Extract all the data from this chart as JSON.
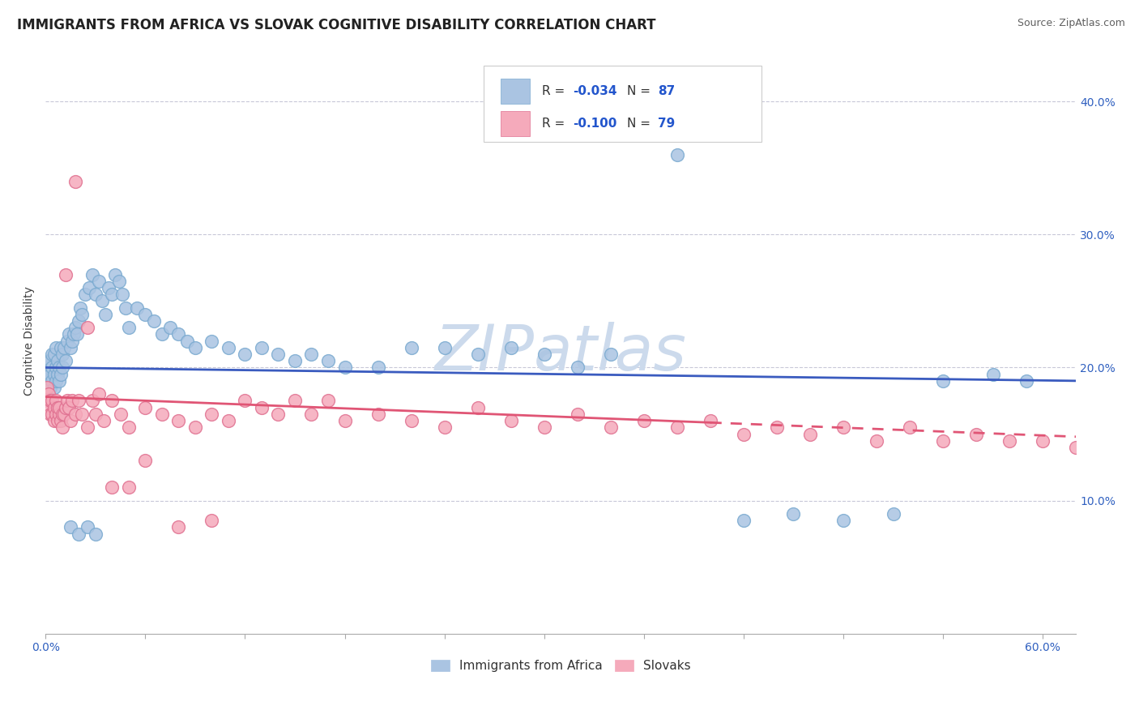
{
  "title": "IMMIGRANTS FROM AFRICA VS SLOVAK COGNITIVE DISABILITY CORRELATION CHART",
  "source": "Source: ZipAtlas.com",
  "ylabel": "Cognitive Disability",
  "xlim": [
    0.0,
    0.62
  ],
  "ylim": [
    0.0,
    0.44
  ],
  "xticks": [
    0.0,
    0.06,
    0.12,
    0.18,
    0.24,
    0.3,
    0.36,
    0.42,
    0.48,
    0.54,
    0.6
  ],
  "yticks_right": [
    0.1,
    0.2,
    0.3,
    0.4
  ],
  "series1_label": "Immigrants from Africa",
  "series1_color": "#aac4e2",
  "series1_edge": "#7aaad0",
  "series1_R": "-0.034",
  "series1_N": "87",
  "series1_line_color": "#3a5bbf",
  "series2_label": "Slovaks",
  "series2_color": "#f5aabb",
  "series2_edge": "#e07090",
  "series2_R": "-0.100",
  "series2_N": "79",
  "series2_line_color": "#e05575",
  "legend_R_color": "#2255cc",
  "legend_N_color": "#2255cc",
  "watermark": "ZIPatlas",
  "watermark_color": "#ccdaec",
  "title_fontsize": 12,
  "axis_label_fontsize": 10,
  "tick_fontsize": 10,
  "series1_x": [
    0.001,
    0.001,
    0.002,
    0.002,
    0.003,
    0.003,
    0.003,
    0.004,
    0.004,
    0.004,
    0.005,
    0.005,
    0.005,
    0.006,
    0.006,
    0.006,
    0.007,
    0.007,
    0.008,
    0.008,
    0.009,
    0.009,
    0.01,
    0.01,
    0.011,
    0.012,
    0.013,
    0.014,
    0.015,
    0.016,
    0.017,
    0.018,
    0.019,
    0.02,
    0.021,
    0.022,
    0.024,
    0.026,
    0.028,
    0.03,
    0.032,
    0.034,
    0.036,
    0.038,
    0.04,
    0.042,
    0.044,
    0.046,
    0.048,
    0.05,
    0.055,
    0.06,
    0.065,
    0.07,
    0.075,
    0.08,
    0.085,
    0.09,
    0.1,
    0.11,
    0.12,
    0.13,
    0.14,
    0.15,
    0.16,
    0.17,
    0.18,
    0.2,
    0.22,
    0.24,
    0.26,
    0.28,
    0.3,
    0.32,
    0.34,
    0.38,
    0.42,
    0.45,
    0.48,
    0.51,
    0.54,
    0.57,
    0.59,
    0.015,
    0.02,
    0.025,
    0.03
  ],
  "series1_y": [
    0.195,
    0.2,
    0.19,
    0.205,
    0.195,
    0.185,
    0.205,
    0.19,
    0.2,
    0.21,
    0.185,
    0.195,
    0.21,
    0.19,
    0.2,
    0.215,
    0.195,
    0.205,
    0.19,
    0.2,
    0.195,
    0.215,
    0.2,
    0.21,
    0.215,
    0.205,
    0.22,
    0.225,
    0.215,
    0.22,
    0.225,
    0.23,
    0.225,
    0.235,
    0.245,
    0.24,
    0.255,
    0.26,
    0.27,
    0.255,
    0.265,
    0.25,
    0.24,
    0.26,
    0.255,
    0.27,
    0.265,
    0.255,
    0.245,
    0.23,
    0.245,
    0.24,
    0.235,
    0.225,
    0.23,
    0.225,
    0.22,
    0.215,
    0.22,
    0.215,
    0.21,
    0.215,
    0.21,
    0.205,
    0.21,
    0.205,
    0.2,
    0.2,
    0.215,
    0.215,
    0.21,
    0.215,
    0.21,
    0.2,
    0.21,
    0.36,
    0.085,
    0.09,
    0.085,
    0.09,
    0.19,
    0.195,
    0.19,
    0.08,
    0.075,
    0.08,
    0.075
  ],
  "series2_x": [
    0.001,
    0.001,
    0.002,
    0.002,
    0.003,
    0.003,
    0.004,
    0.004,
    0.005,
    0.005,
    0.006,
    0.006,
    0.007,
    0.007,
    0.008,
    0.008,
    0.009,
    0.01,
    0.01,
    0.011,
    0.012,
    0.013,
    0.014,
    0.015,
    0.016,
    0.018,
    0.02,
    0.022,
    0.025,
    0.028,
    0.03,
    0.035,
    0.04,
    0.045,
    0.05,
    0.06,
    0.07,
    0.08,
    0.09,
    0.1,
    0.11,
    0.12,
    0.13,
    0.14,
    0.15,
    0.16,
    0.17,
    0.18,
    0.2,
    0.22,
    0.24,
    0.26,
    0.28,
    0.3,
    0.32,
    0.34,
    0.36,
    0.38,
    0.4,
    0.42,
    0.44,
    0.46,
    0.48,
    0.5,
    0.52,
    0.54,
    0.56,
    0.58,
    0.6,
    0.62,
    0.012,
    0.018,
    0.025,
    0.032,
    0.04,
    0.05,
    0.06,
    0.08,
    0.1
  ],
  "series2_y": [
    0.185,
    0.175,
    0.18,
    0.17,
    0.175,
    0.165,
    0.175,
    0.165,
    0.17,
    0.16,
    0.165,
    0.175,
    0.17,
    0.16,
    0.165,
    0.17,
    0.16,
    0.165,
    0.155,
    0.165,
    0.17,
    0.175,
    0.17,
    0.16,
    0.175,
    0.165,
    0.175,
    0.165,
    0.155,
    0.175,
    0.165,
    0.16,
    0.175,
    0.165,
    0.155,
    0.17,
    0.165,
    0.16,
    0.155,
    0.165,
    0.16,
    0.175,
    0.17,
    0.165,
    0.175,
    0.165,
    0.175,
    0.16,
    0.165,
    0.16,
    0.155,
    0.17,
    0.16,
    0.155,
    0.165,
    0.155,
    0.16,
    0.155,
    0.16,
    0.15,
    0.155,
    0.15,
    0.155,
    0.145,
    0.155,
    0.145,
    0.15,
    0.145,
    0.145,
    0.14,
    0.27,
    0.34,
    0.23,
    0.18,
    0.11,
    0.11,
    0.13,
    0.08,
    0.085
  ],
  "trendline1_x0": 0.0,
  "trendline1_y0": 0.2,
  "trendline1_x1": 0.62,
  "trendline1_y1": 0.19,
  "trendline2_x0": 0.0,
  "trendline2_y0": 0.178,
  "trendline2_x1": 0.62,
  "trendline2_y1": 0.148,
  "trendline2_solid_end": 0.4
}
